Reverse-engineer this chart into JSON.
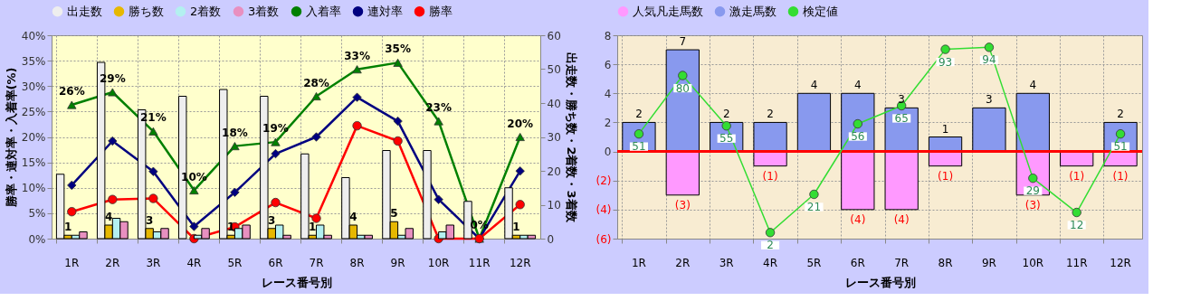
{
  "chart_data": [
    {
      "type": "bar",
      "categories": [
        "1R",
        "2R",
        "3R",
        "4R",
        "5R",
        "6R",
        "7R",
        "8R",
        "9R",
        "10R",
        "11R",
        "12R"
      ],
      "xlabel": "レース番号別",
      "ylabel": "勝率・連対率・入着率(%)",
      "y2label": "出走数・勝ち数・2着数・3着数",
      "ylim": [
        0,
        40
      ],
      "yticks": [
        {
          "value": 0,
          "label": "0%"
        },
        {
          "value": 5,
          "label": "5%"
        },
        {
          "value": 10,
          "label": "10%"
        },
        {
          "value": 15,
          "label": "15%"
        },
        {
          "value": 20,
          "label": "20%"
        },
        {
          "value": 25,
          "label": "25%"
        },
        {
          "value": 30,
          "label": "30%"
        },
        {
          "value": 35,
          "label": "35%"
        },
        {
          "value": 40,
          "label": "40%"
        }
      ],
      "y2lim": [
        0,
        60
      ],
      "y2ticks": [
        0,
        10,
        20,
        30,
        40,
        50,
        60
      ],
      "grid": true,
      "legend": "top",
      "series": [
        {
          "name": "出走数",
          "axis": "y2",
          "color": "#eeeeee",
          "values": [
            19,
            52,
            38,
            42,
            44,
            42,
            25,
            18,
            26,
            26,
            11,
            15
          ]
        },
        {
          "name": "勝ち数",
          "axis": "y2",
          "color": "#e6b800",
          "values": [
            1,
            4,
            3,
            0,
            1,
            3,
            1,
            4,
            5,
            0,
            0,
            1
          ],
          "value_labels": [
            "1",
            "4",
            "3",
            null,
            "1",
            "3",
            "1",
            "4",
            "5",
            null,
            null,
            "1"
          ]
        },
        {
          "name": "2着数",
          "axis": "y2",
          "color": "#b3f0f0",
          "values": [
            1,
            6,
            2,
            1,
            3,
            4,
            4,
            1,
            1,
            2,
            0,
            1
          ]
        },
        {
          "name": "3着数",
          "axis": "y2",
          "color": "#e890c0",
          "values": [
            2,
            5,
            3,
            3,
            4,
            1,
            1,
            1,
            3,
            4,
            0,
            1
          ]
        },
        {
          "name": "入着率",
          "type": "line",
          "color": "#008000",
          "marker": "triangle",
          "values": [
            26.3,
            28.8,
            21.1,
            9.5,
            18.2,
            19.0,
            28.0,
            33.3,
            34.6,
            23.1,
            0,
            20.0
          ],
          "value_labels": [
            "26%",
            "29%",
            "21%",
            "10%",
            "18%",
            "19%",
            "28%",
            "33%",
            "35%",
            "23%",
            "0%",
            "20%"
          ]
        },
        {
          "name": "連対率",
          "type": "line",
          "color": "#000080",
          "marker": "diamond",
          "values": [
            10.5,
            19.2,
            13.2,
            2.4,
            9.1,
            16.7,
            20.0,
            27.8,
            23.1,
            7.7,
            0,
            13.3
          ]
        },
        {
          "name": "勝率",
          "type": "line",
          "color": "#ff0000",
          "marker": "circle",
          "values": [
            5.3,
            7.7,
            7.9,
            0,
            2.3,
            7.1,
            4.0,
            22.2,
            19.2,
            0,
            0,
            6.7
          ]
        }
      ]
    },
    {
      "type": "bar",
      "stacked": true,
      "categories": [
        "1R",
        "2R",
        "3R",
        "4R",
        "5R",
        "6R",
        "7R",
        "8R",
        "9R",
        "10R",
        "11R",
        "12R"
      ],
      "xlabel": "レース番号別",
      "ylim": [
        -6,
        8
      ],
      "yticks": [
        {
          "value": -6,
          "label": "(6)"
        },
        {
          "value": -4,
          "label": "(4)"
        },
        {
          "value": -2,
          "label": "(2)"
        },
        0,
        2,
        4,
        6,
        8
      ],
      "y2lim": [
        -1,
        100
      ],
      "grid": true,
      "legend": "top",
      "ref_lines": [
        {
          "axis": "y",
          "value": 0,
          "color": "#ff0000"
        }
      ],
      "series": [
        {
          "name": "人気凡走馬数",
          "color": "#ff99ff",
          "values": [
            null,
            -3,
            null,
            -1,
            null,
            -4,
            -4,
            -1,
            null,
            -3,
            -1,
            -1
          ],
          "value_labels": [
            null,
            "(3)",
            null,
            "(1)",
            null,
            "(4)",
            "(4)",
            "(1)",
            null,
            "(3)",
            "(1)",
            "(1)"
          ]
        },
        {
          "name": "激走馬数",
          "color": "#8899ee",
          "values": [
            2,
            7,
            2,
            2,
            4,
            4,
            3,
            1,
            3,
            4,
            null,
            2
          ],
          "value_labels": [
            "2",
            "7",
            "2",
            "2",
            "4",
            "4",
            "3",
            "1",
            "3",
            "4",
            null,
            "2"
          ]
        },
        {
          "name": "検定値",
          "type": "line",
          "axis": "y2",
          "color": "#33dd33",
          "marker": "circle",
          "values": [
            51,
            80,
            55,
            2,
            21,
            56,
            65,
            93,
            94,
            29,
            12,
            51
          ],
          "value_labels": [
            "51",
            "80",
            "55",
            "2",
            "21",
            "56",
            "65",
            "93",
            "94",
            "29",
            "12",
            "51"
          ]
        }
      ]
    }
  ]
}
